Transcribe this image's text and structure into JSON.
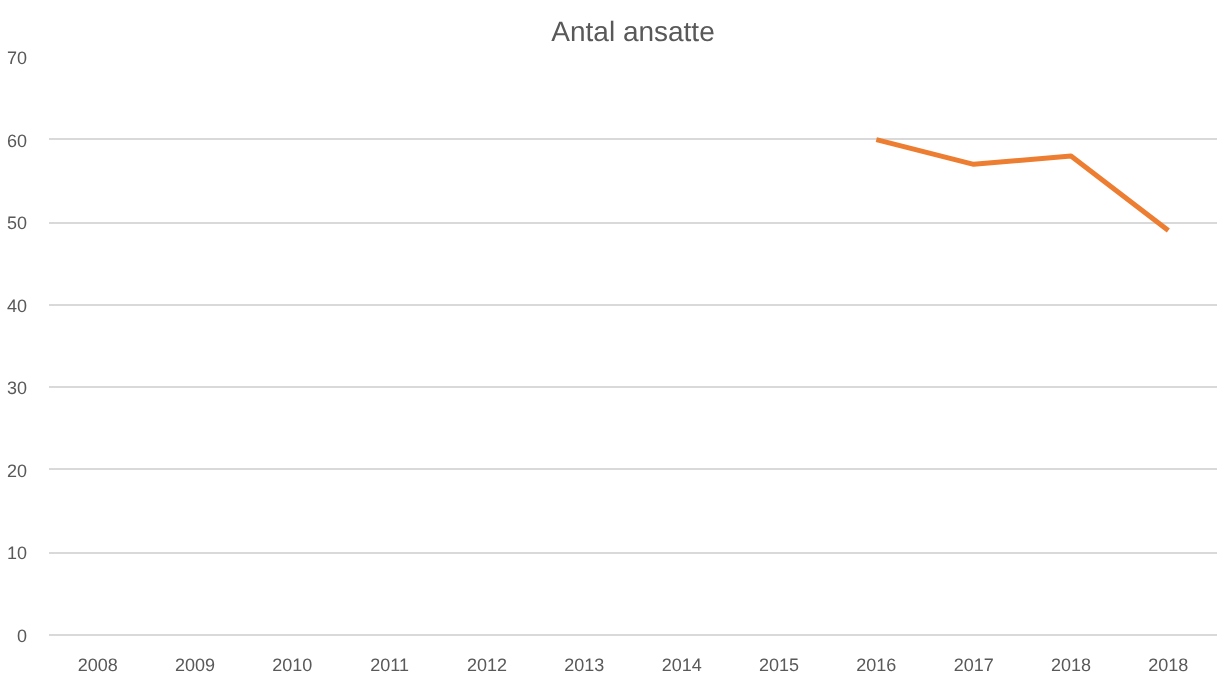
{
  "chart_data": {
    "type": "line",
    "title": "Antal ansatte",
    "categories": [
      "2008",
      "2009",
      "2010",
      "2011",
      "2012",
      "2013",
      "2014",
      "2015",
      "2016",
      "2017",
      "2018",
      "2018"
    ],
    "series": [
      {
        "color": "#ed7d31",
        "values": [
          null,
          null,
          null,
          null,
          null,
          null,
          null,
          null,
          60,
          57,
          58,
          49
        ]
      }
    ],
    "ylim": [
      0,
      70
    ],
    "yticks": [
      0,
      10,
      20,
      30,
      40,
      50,
      60,
      70
    ],
    "grid": "y"
  }
}
